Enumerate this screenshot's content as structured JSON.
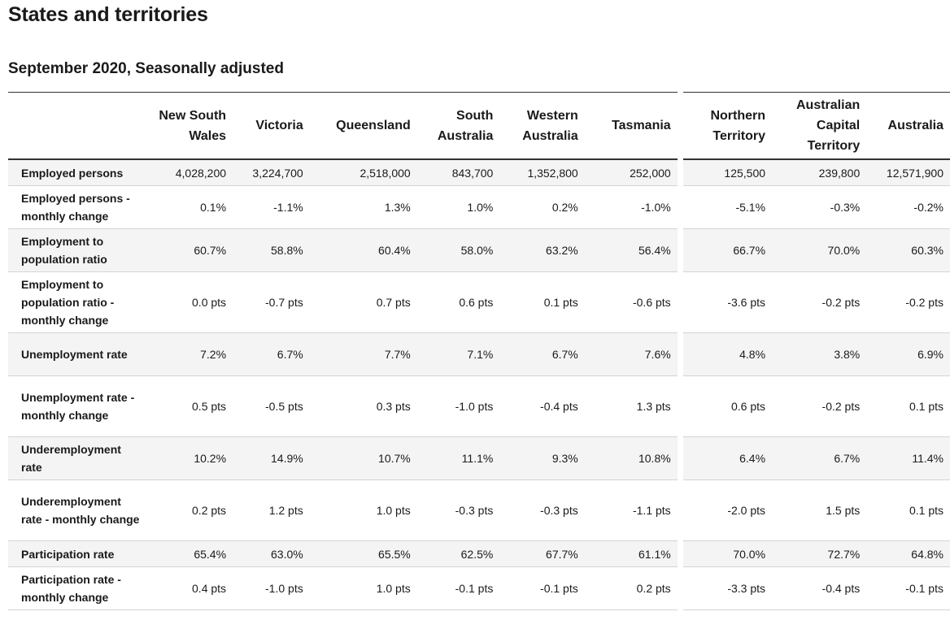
{
  "page": {
    "title": "States and territories",
    "subtitle": "September 2020, Seasonally adjusted"
  },
  "table": {
    "columns": [
      "New South Wales",
      "Victoria",
      "Queensland",
      "South Australia",
      "Western Australia",
      "Tasmania",
      "Northern Territory",
      "Australian Capital Territory",
      "Australia"
    ],
    "rows": [
      {
        "label": "Employed persons",
        "values": [
          "4,028,200",
          "3,224,700",
          "2,518,000",
          "843,700",
          "1,352,800",
          "252,000",
          "125,500",
          "239,800",
          "12,571,900"
        ]
      },
      {
        "label": "Employed persons - monthly change",
        "values": [
          "0.1%",
          "-1.1%",
          "1.3%",
          "1.0%",
          "0.2%",
          "-1.0%",
          "-5.1%",
          "-0.3%",
          "-0.2%"
        ]
      },
      {
        "label": "Employment to population ratio",
        "values": [
          "60.7%",
          "58.8%",
          "60.4%",
          "58.0%",
          "63.2%",
          "56.4%",
          "66.7%",
          "70.0%",
          "60.3%"
        ]
      },
      {
        "label": "Employment to population ratio - monthly change",
        "values": [
          "0.0 pts",
          "-0.7 pts",
          "0.7 pts",
          "0.6 pts",
          "0.1 pts",
          "-0.6 pts",
          "-3.6 pts",
          "-0.2 pts",
          "-0.2 pts"
        ]
      },
      {
        "label": "Unemployment rate",
        "values": [
          "7.2%",
          "6.7%",
          "7.7%",
          "7.1%",
          "6.7%",
          "7.6%",
          "4.8%",
          "3.8%",
          "6.9%"
        ]
      },
      {
        "label": "Unemployment rate - monthly change",
        "values": [
          "0.5 pts",
          "-0.5 pts",
          "0.3 pts",
          "-1.0 pts",
          "-0.4 pts",
          "1.3 pts",
          "0.6 pts",
          "-0.2 pts",
          "0.1 pts"
        ]
      },
      {
        "label": "Underemployment rate",
        "values": [
          "10.2%",
          "14.9%",
          "10.7%",
          "11.1%",
          "9.3%",
          "10.8%",
          "6.4%",
          "6.7%",
          "11.4%"
        ]
      },
      {
        "label": "Underemployment rate - monthly change",
        "values": [
          "0.2 pts",
          "1.2 pts",
          "1.0 pts",
          "-0.3 pts",
          "-0.3 pts",
          "-1.1 pts",
          "-2.0 pts",
          "1.5 pts",
          "0.1 pts"
        ]
      },
      {
        "label": "Participation rate",
        "values": [
          "65.4%",
          "63.0%",
          "65.5%",
          "62.5%",
          "67.7%",
          "61.1%",
          "70.0%",
          "72.7%",
          "64.8%"
        ]
      },
      {
        "label": "Participation rate - monthly change",
        "values": [
          "0.4 pts",
          "-1.0 pts",
          "1.0 pts",
          "-0.1 pts",
          "-0.1 pts",
          "0.2 pts",
          "-3.3 pts",
          "-0.4 pts",
          "-0.1 pts"
        ]
      }
    ]
  }
}
